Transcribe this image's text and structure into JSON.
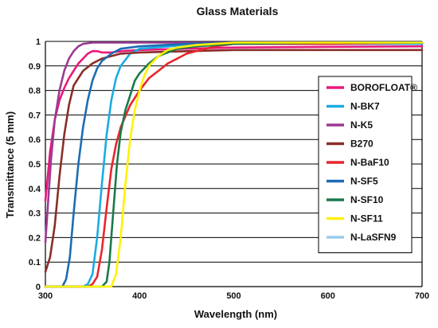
{
  "chart_data": {
    "type": "line",
    "title": "Glass Materials",
    "xlabel": "Wavelength (nm)",
    "ylabel": "Transmittance (5 mm)",
    "xlim": [
      300,
      700
    ],
    "ylim": [
      0,
      1
    ],
    "x_ticks": [
      300,
      400,
      500,
      600,
      700
    ],
    "x_tick_labels": [
      "300",
      "400",
      "500",
      "600",
      "700"
    ],
    "y_ticks": [
      0,
      0.1,
      0.2,
      0.3,
      0.4,
      0.5,
      0.6,
      0.7,
      0.8,
      0.9,
      1
    ],
    "y_tick_labels": [
      "0",
      "0.1",
      "0.2",
      "0.3",
      "0.4",
      "0.5",
      "0.6",
      "0.7",
      "0.8",
      "0.9",
      "1"
    ],
    "grid": "horizontal",
    "legend_position": "right",
    "series": [
      {
        "name": "BOROFLOAT®",
        "color": "#e8197a",
        "x": [
          300,
          305,
          310,
          315,
          320,
          325,
          330,
          335,
          340,
          345,
          350,
          355,
          360,
          370,
          380,
          400,
          450,
          500,
          600,
          700
        ],
        "y": [
          0.35,
          0.55,
          0.68,
          0.76,
          0.81,
          0.85,
          0.88,
          0.91,
          0.93,
          0.95,
          0.96,
          0.96,
          0.955,
          0.955,
          0.96,
          0.965,
          0.97,
          0.975,
          0.978,
          0.98
        ]
      },
      {
        "name": "N-BK7",
        "color": "#1aace3",
        "x": [
          300,
          330,
          340,
          345,
          350,
          355,
          360,
          365,
          370,
          375,
          380,
          390,
          400,
          450,
          500,
          600,
          700
        ],
        "y": [
          0,
          0,
          0,
          0.01,
          0.05,
          0.2,
          0.42,
          0.62,
          0.76,
          0.85,
          0.9,
          0.95,
          0.97,
          0.985,
          0.99,
          0.99,
          0.99
        ]
      },
      {
        "name": "N-K5",
        "color": "#9b3a93",
        "x": [
          300,
          303,
          306,
          310,
          315,
          320,
          325,
          330,
          335,
          340,
          350,
          360,
          380,
          400,
          500,
          600,
          700
        ],
        "y": [
          0.18,
          0.35,
          0.52,
          0.68,
          0.8,
          0.88,
          0.93,
          0.96,
          0.98,
          0.99,
          0.995,
          0.995,
          0.995,
          0.995,
          0.995,
          0.995,
          0.995
        ]
      },
      {
        "name": "B270",
        "color": "#8a2e28",
        "x": [
          300,
          305,
          310,
          315,
          320,
          325,
          330,
          340,
          350,
          360,
          370,
          380,
          400,
          450,
          500,
          600,
          700
        ],
        "y": [
          0.06,
          0.12,
          0.25,
          0.45,
          0.62,
          0.74,
          0.82,
          0.88,
          0.91,
          0.93,
          0.94,
          0.95,
          0.955,
          0.96,
          0.965,
          0.965,
          0.965
        ]
      },
      {
        "name": "N-BaF10",
        "color": "#e8262c",
        "x": [
          300,
          345,
          350,
          355,
          360,
          365,
          370,
          375,
          380,
          390,
          400,
          410,
          420,
          430,
          440,
          450,
          460,
          480,
          500,
          600,
          700
        ],
        "y": [
          0,
          0,
          0.01,
          0.04,
          0.15,
          0.32,
          0.48,
          0.58,
          0.65,
          0.74,
          0.8,
          0.85,
          0.88,
          0.91,
          0.93,
          0.95,
          0.96,
          0.98,
          0.99,
          0.99,
          0.995
        ]
      },
      {
        "name": "N-SF5",
        "color": "#1d6cb3",
        "x": [
          300,
          318,
          322,
          326,
          330,
          335,
          340,
          345,
          350,
          355,
          360,
          370,
          380,
          400,
          450,
          500,
          600,
          700
        ],
        "y": [
          0,
          0,
          0.03,
          0.12,
          0.3,
          0.5,
          0.65,
          0.76,
          0.84,
          0.89,
          0.92,
          0.95,
          0.97,
          0.98,
          0.99,
          0.995,
          0.995,
          0.995
        ]
      },
      {
        "name": "N-SF10",
        "color": "#1a7a4c",
        "x": [
          300,
          360,
          365,
          368,
          372,
          376,
          380,
          385,
          390,
          395,
          400,
          410,
          420,
          440,
          460,
          500,
          600,
          700
        ],
        "y": [
          0,
          0,
          0.02,
          0.1,
          0.3,
          0.5,
          0.63,
          0.72,
          0.78,
          0.84,
          0.87,
          0.91,
          0.94,
          0.97,
          0.98,
          0.99,
          0.995,
          0.995
        ]
      },
      {
        "name": "N-SF11",
        "color": "#fff200",
        "x": [
          300,
          370,
          375,
          380,
          385,
          390,
          395,
          400,
          405,
          410,
          420,
          430,
          440,
          460,
          480,
          500,
          600,
          700
        ],
        "y": [
          0,
          0,
          0.05,
          0.2,
          0.42,
          0.6,
          0.72,
          0.8,
          0.86,
          0.9,
          0.94,
          0.965,
          0.975,
          0.985,
          0.99,
          0.995,
          0.995,
          0.995
        ]
      },
      {
        "name": "N-LaSFN9",
        "color": "#9acde8",
        "x": [
          300,
          400,
          500,
          600,
          700
        ],
        "y": [
          null,
          null,
          null,
          null,
          null
        ]
      }
    ]
  }
}
